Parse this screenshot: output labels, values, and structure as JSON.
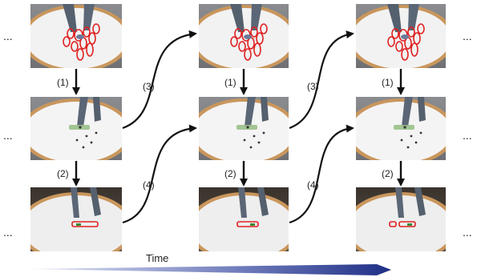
{
  "diagram": {
    "ellipsis": "...",
    "step_labels": [
      "(1)",
      "(2)",
      "(3)",
      "(4)"
    ],
    "time_label": "Time",
    "colors": {
      "arrow": "#111111",
      "time_arrow_dark": "#1f2f86",
      "time_arrow_light": "#c7cde8",
      "table_wood": "#c9965c",
      "table_surface": "#f2f2f2",
      "highlight": "#e02020"
    },
    "panel_types": [
      "ellipses",
      "tracking",
      "highlight"
    ]
  }
}
